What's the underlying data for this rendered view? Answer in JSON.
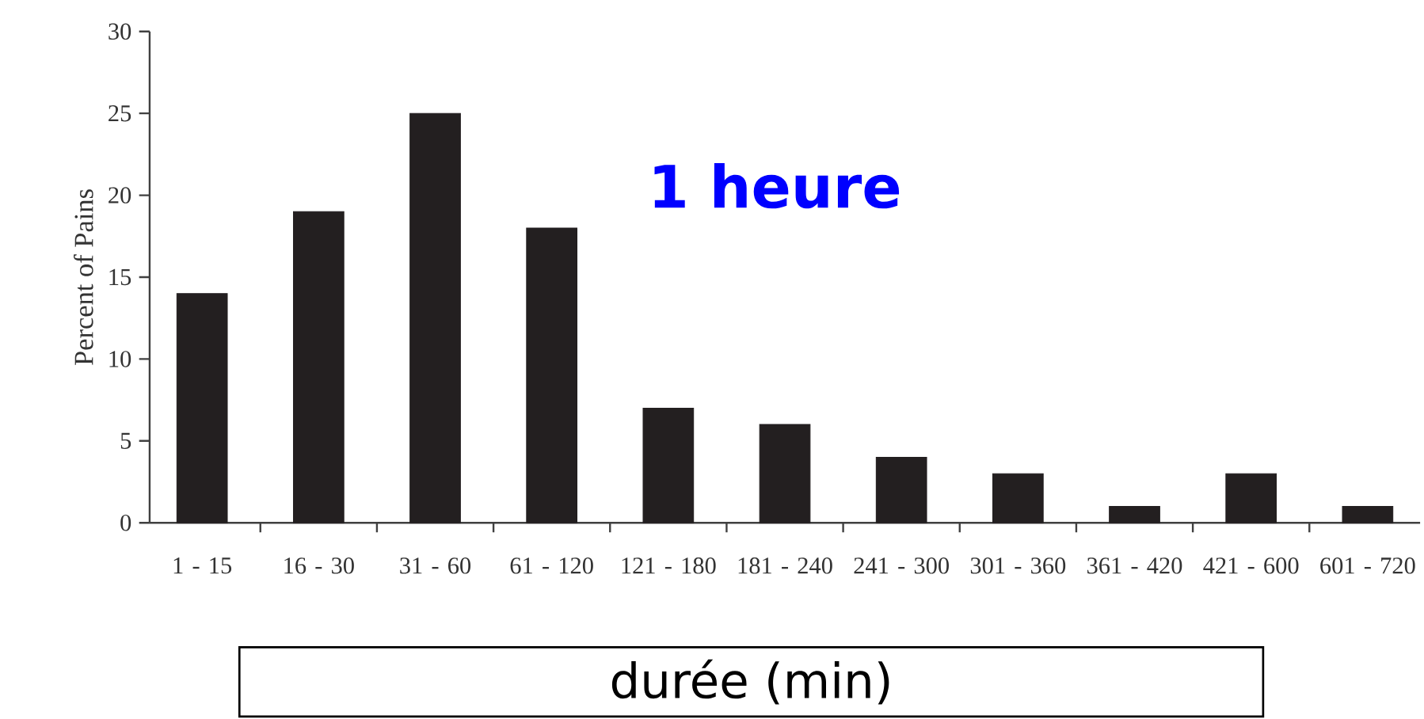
{
  "chart_data": {
    "type": "bar",
    "xlabel": "durée (min)",
    "ylabel": "Percent of Pains",
    "categories": [
      "1 - 15",
      "16 - 30",
      "31 - 60",
      "61 - 120",
      "121 - 180",
      "181 - 240",
      "241 - 300",
      "301 - 360",
      "361 - 420",
      "421 - 600",
      "601 - 720"
    ],
    "values": [
      14,
      19,
      25,
      18,
      7,
      6,
      4,
      3,
      1,
      3,
      1
    ],
    "color": "#231f20",
    "ylim": [
      0,
      30
    ],
    "yticks": [
      0,
      5,
      10,
      15,
      20,
      25,
      30
    ],
    "annotations": [
      "1 heure"
    ]
  }
}
